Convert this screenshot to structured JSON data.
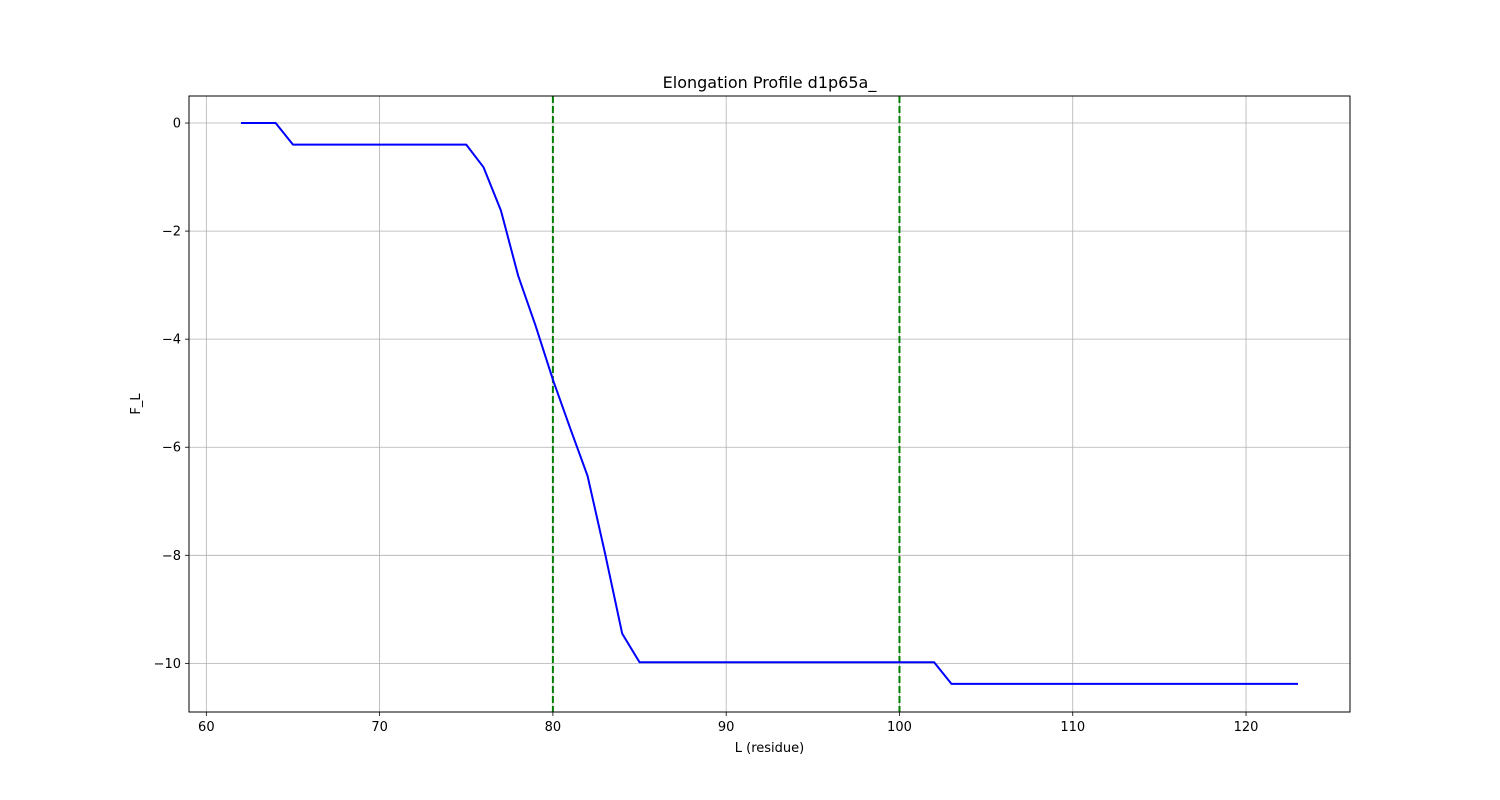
{
  "chart_data": {
    "type": "line",
    "title": "Elongation Profile d1p65a_",
    "xlabel": "L (residue)",
    "ylabel": "F_L",
    "xlim": [
      59,
      126
    ],
    "ylim": [
      -10.9,
      0.5
    ],
    "xticks": [
      60,
      70,
      80,
      90,
      100,
      110,
      120
    ],
    "yticks": [
      0,
      -2,
      -4,
      -6,
      -8,
      -10
    ],
    "grid": true,
    "series": [
      {
        "color": "#0000ff",
        "x": [
          62,
          63,
          64,
          65,
          66,
          67,
          68,
          69,
          70,
          71,
          72,
          73,
          74,
          75,
          76,
          77,
          78,
          79,
          80,
          81,
          82,
          83,
          84,
          85,
          86,
          87,
          88,
          89,
          90,
          91,
          92,
          93,
          94,
          95,
          96,
          97,
          98,
          99,
          100,
          101,
          102,
          103,
          104,
          105,
          106,
          107,
          108,
          109,
          110,
          111,
          112,
          113,
          114,
          115,
          116,
          117,
          118,
          119,
          120,
          121,
          122,
          123
        ],
        "y": [
          0,
          0,
          0,
          -0.4,
          -0.4,
          -0.4,
          -0.4,
          -0.4,
          -0.4,
          -0.4,
          -0.4,
          -0.4,
          -0.4,
          -0.4,
          -0.82,
          -1.62,
          -2.83,
          -3.75,
          -4.75,
          -5.65,
          -6.53,
          -7.95,
          -9.45,
          -9.98,
          -9.98,
          -9.98,
          -9.98,
          -9.98,
          -9.98,
          -9.98,
          -9.98,
          -9.98,
          -9.98,
          -9.98,
          -9.98,
          -9.98,
          -9.98,
          -9.98,
          -9.98,
          -9.98,
          -9.98,
          -10.38,
          -10.38,
          -10.38,
          -10.38,
          -10.38,
          -10.38,
          -10.38,
          -10.38,
          -10.38,
          -10.38,
          -10.38,
          -10.38,
          -10.38,
          -10.38,
          -10.38,
          -10.38,
          -10.38,
          -10.38,
          -10.38,
          -10.38,
          -10.38
        ]
      }
    ],
    "vlines": [
      {
        "x": 80,
        "color": "#008000",
        "style": "dashed"
      },
      {
        "x": 100,
        "color": "#008000",
        "style": "dashed"
      }
    ]
  }
}
